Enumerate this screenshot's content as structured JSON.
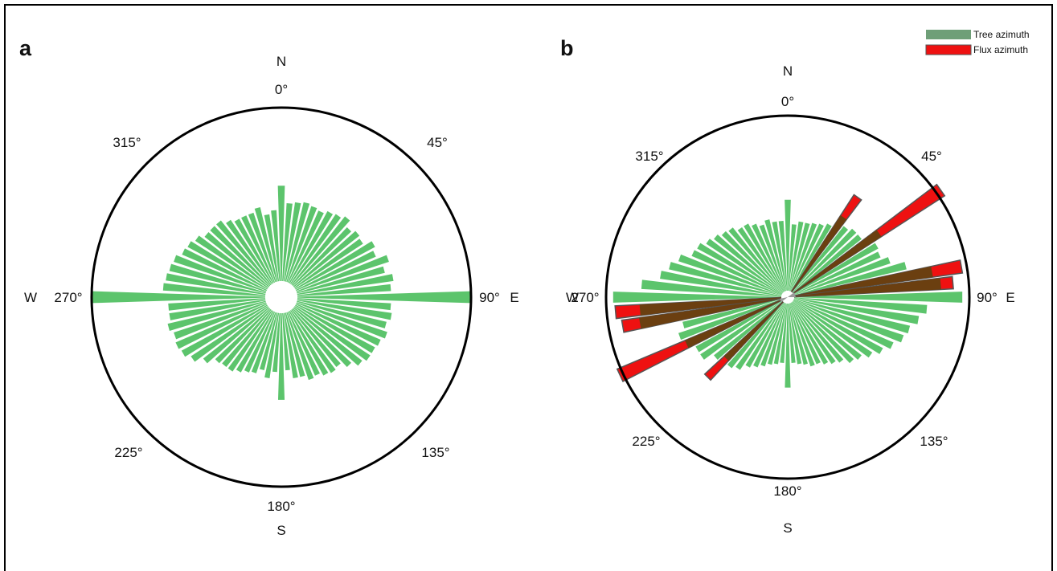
{
  "colors": {
    "tree": "#5cc46c",
    "flux": "#ee1111",
    "overlap": "#6b3f10",
    "legend_tree": "#6f9f78",
    "circle": "#000000",
    "frame": "#000000"
  },
  "legend": {
    "position": "top-right",
    "items": [
      {
        "label": "Tree azimuth",
        "color": "#6f9f78"
      },
      {
        "label": "Flux azimuth",
        "color": "#ee1111"
      }
    ]
  },
  "chart_data": [
    {
      "panel": "a",
      "type": "polar-bar",
      "theta_unit": "degrees",
      "theta_direction": "clockwise",
      "theta_zero": "N",
      "angle_tick_labels": [
        "0°",
        "45°",
        "90°",
        "135°",
        "180°",
        "225°",
        "270°",
        "315°"
      ],
      "cardinal_labels": {
        "N": "N",
        "E": "E",
        "S": "S",
        "W": "W"
      },
      "radial_range": [
        0,
        100
      ],
      "bin_width_deg": 5,
      "series": [
        {
          "legend_ref": "Tree azimuth",
          "color": "#5cc46c",
          "theta": [
            0,
            5,
            10,
            15,
            20,
            25,
            30,
            35,
            40,
            45,
            50,
            55,
            60,
            65,
            70,
            75,
            80,
            85,
            90,
            95,
            100,
            105,
            110,
            115,
            120,
            125,
            130,
            135,
            140,
            145,
            150,
            155,
            160,
            165,
            170,
            175,
            180,
            185,
            190,
            195,
            200,
            205,
            210,
            215,
            220,
            225,
            230,
            235,
            240,
            245,
            250,
            255,
            260,
            265,
            270,
            275,
            280,
            285,
            290,
            295,
            300,
            305,
            310,
            315,
            320,
            325,
            330,
            335,
            340,
            345,
            350,
            355
          ],
          "r": [
            55,
            45,
            46,
            47,
            46,
            45,
            47,
            48,
            50,
            46,
            48,
            47,
            52,
            50,
            56,
            52,
            56,
            54,
            100,
            54,
            55,
            53,
            55,
            53,
            52,
            52,
            50,
            46,
            42,
            43,
            42,
            40,
            41,
            38,
            38,
            33,
            50,
            34,
            38,
            34,
            37,
            38,
            40,
            42,
            42,
            43,
            48,
            53,
            56,
            57,
            56,
            58,
            56,
            56,
            100,
            59,
            58,
            57,
            56,
            53,
            52,
            50,
            47,
            47,
            47,
            44,
            42,
            42,
            42,
            44,
            39,
            41
          ]
        }
      ]
    },
    {
      "panel": "b",
      "type": "polar-bar",
      "theta_unit": "degrees",
      "theta_direction": "clockwise",
      "theta_zero": "N",
      "angle_tick_labels": [
        "0°",
        "45°",
        "90°",
        "135°",
        "180°",
        "225°",
        "270°",
        "315°"
      ],
      "cardinal_labels": {
        "N": "N",
        "E": "E",
        "S": "S",
        "W": "W"
      },
      "radial_range": [
        0,
        100
      ],
      "bin_width_deg": 5,
      "series": [
        {
          "legend_ref": "Tree azimuth",
          "color": "#5cc46c",
          "theta": [
            0,
            5,
            10,
            15,
            20,
            25,
            30,
            35,
            40,
            45,
            50,
            55,
            60,
            65,
            70,
            75,
            80,
            85,
            90,
            95,
            100,
            105,
            110,
            115,
            120,
            125,
            130,
            135,
            140,
            145,
            150,
            155,
            160,
            165,
            170,
            175,
            180,
            185,
            190,
            195,
            200,
            205,
            210,
            215,
            220,
            225,
            230,
            235,
            240,
            245,
            250,
            255,
            260,
            265,
            270,
            275,
            280,
            285,
            290,
            295,
            300,
            305,
            310,
            315,
            320,
            325,
            330,
            335,
            340,
            345,
            350,
            355
          ],
          "r": [
            52,
            38,
            40,
            40,
            41,
            42,
            44,
            48,
            48,
            50,
            50,
            52,
            55,
            54,
            58,
            66,
            68,
            72,
            96,
            76,
            72,
            68,
            66,
            62,
            58,
            54,
            50,
            48,
            44,
            42,
            40,
            38,
            38,
            36,
            35,
            34,
            48,
            34,
            35,
            36,
            38,
            40,
            42,
            46,
            48,
            48,
            50,
            56,
            56,
            58,
            62,
            58,
            60,
            70,
            96,
            80,
            70,
            66,
            62,
            56,
            55,
            52,
            50,
            48,
            47,
            44,
            44,
            42,
            40,
            42,
            40,
            40
          ]
        },
        {
          "legend_ref": "Flux azimuth",
          "color": "#ee1111",
          "theta": [
            35,
            55,
            80,
            85,
            260,
            265,
            245,
            225
          ],
          "r": [
            66,
            103,
            97,
            91,
            92,
            95,
            102,
            61
          ],
          "overlap_r": [
            52,
            60,
            80,
            84,
            82,
            81,
            60,
            46
          ]
        }
      ]
    }
  ]
}
